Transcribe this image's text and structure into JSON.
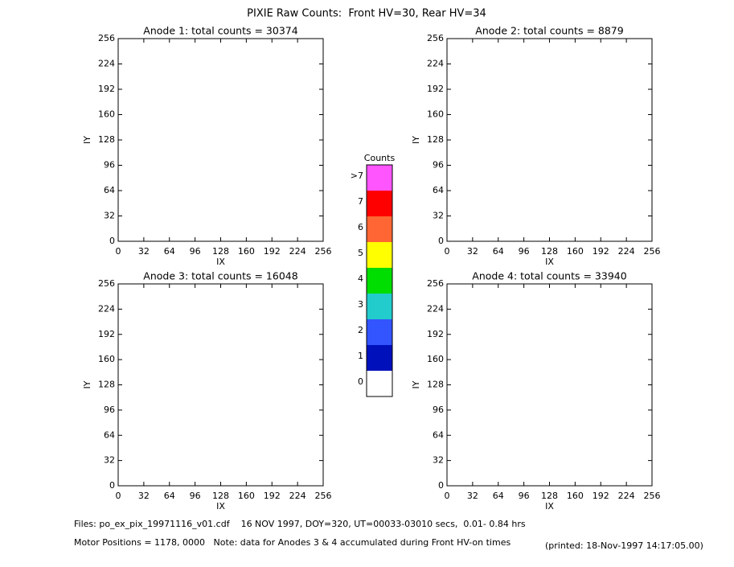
{
  "title": "PIXIE Raw Counts:  Front HV=30, Rear HV=34",
  "chart_data": [
    {
      "type": "heatmap",
      "title": "Anode 1: total counts = 30374",
      "xlabel": "IX",
      "ylabel": "IY",
      "xlim": [
        0,
        256
      ],
      "ylim": [
        0,
        256
      ],
      "xticks": [
        0,
        32,
        64,
        96,
        128,
        160,
        192,
        224,
        256
      ],
      "yticks": [
        0,
        32,
        64,
        96,
        128,
        160,
        192,
        224,
        256
      ]
    },
    {
      "type": "heatmap",
      "title": "Anode 2: total counts = 8879",
      "xlabel": "IX",
      "ylabel": "IY",
      "xlim": [
        0,
        256
      ],
      "ylim": [
        0,
        256
      ],
      "xticks": [
        0,
        32,
        64,
        96,
        128,
        160,
        192,
        224,
        256
      ],
      "yticks": [
        0,
        32,
        64,
        96,
        128,
        160,
        192,
        224,
        256
      ]
    },
    {
      "type": "heatmap",
      "title": "Anode 3: total counts = 16048",
      "xlabel": "IX",
      "ylabel": "IY",
      "xlim": [
        0,
        256
      ],
      "ylim": [
        0,
        256
      ],
      "xticks": [
        0,
        32,
        64,
        96,
        128,
        160,
        192,
        224,
        256
      ],
      "yticks": [
        0,
        32,
        64,
        96,
        128,
        160,
        192,
        224,
        256
      ]
    },
    {
      "type": "heatmap",
      "title": "Anode 4: total counts = 33940",
      "xlabel": "IX",
      "ylabel": "IY",
      "xlim": [
        0,
        256
      ],
      "ylim": [
        0,
        256
      ],
      "xticks": [
        0,
        32,
        64,
        96,
        128,
        160,
        192,
        224,
        256
      ],
      "yticks": [
        0,
        32,
        64,
        96,
        128,
        160,
        192,
        224,
        256
      ]
    }
  ],
  "colorbar": {
    "title": "Counts",
    "labels": [
      "0",
      "1",
      "2",
      "3",
      "4",
      "5",
      "6",
      "7",
      ">7"
    ],
    "colors": [
      "#ffffff",
      "#0011bb",
      "#3355ff",
      "#22cccc",
      "#00dd00",
      "#ffff00",
      "#ff6633",
      "#ff0000",
      "#ff55ff"
    ]
  },
  "footer": {
    "files": "Files: po_ex_pix_19971116_v01.cdf    16 NOV 1997, DOY=320, UT=00033-03010 secs,  0.01- 0.84 hrs",
    "motor": "Motor Positions = 1178, 0000   Note: data for Anodes 3 & 4 accumulated during Front HV-on times",
    "printed": "(printed: 18-Nov-1997 14:17:05.00)"
  }
}
